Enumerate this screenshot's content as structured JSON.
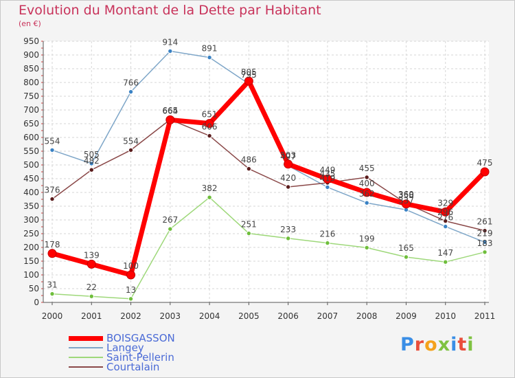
{
  "title": "Evolution du Montant de la Dette par Habitant",
  "subtitle": "(en €)",
  "brand": "Proxiti",
  "brand_colors": [
    "#3a8ee6",
    "#e94e3c",
    "#f4a21c",
    "#7fc241",
    "#3a8ee6",
    "#e94e3c",
    "#7fc241"
  ],
  "chart_data": {
    "type": "line",
    "title": "Evolution du Montant de la Dette par Habitant",
    "ylabel": "(en €)",
    "xlabel": "",
    "ylim": [
      0,
      950
    ],
    "yticks": [
      0,
      50,
      100,
      150,
      200,
      250,
      300,
      350,
      400,
      450,
      500,
      550,
      600,
      650,
      700,
      750,
      800,
      850,
      900,
      950
    ],
    "grid": true,
    "legend_position": "bottom-left",
    "x": [
      "2000",
      "2001",
      "2002",
      "2003",
      "2004",
      "2005",
      "2006",
      "2007",
      "2008",
      "2009",
      "2010",
      "2011"
    ],
    "series": [
      {
        "name": "Langey",
        "color": "#7ea6c8",
        "marker": "#3a82c4",
        "width": 1.5,
        "values": [
          554,
          505,
          766,
          914,
          891,
          795,
          497,
          419,
          362,
          337,
          276,
          219
        ]
      },
      {
        "name": "Courtalain",
        "color": "#8a4848",
        "marker": "#5a1c1c",
        "width": 1.5,
        "values": [
          376,
          482,
          554,
          665,
          606,
          486,
          420,
          435,
          455,
          360,
          296,
          261
        ]
      },
      {
        "name": "Saint-Pellerin",
        "color": "#9ed87a",
        "marker": "#6fbe3c",
        "width": 1.5,
        "values": [
          31,
          22,
          13,
          267,
          382,
          251,
          233,
          216,
          199,
          165,
          147,
          183
        ]
      },
      {
        "name": "BOISGASSON",
        "color": "#ff0000",
        "marker": "#e00000",
        "width": 7,
        "values": [
          178,
          139,
          100,
          664,
          651,
          805,
          503,
          449,
          400,
          358,
          329,
          475
        ]
      }
    ]
  }
}
